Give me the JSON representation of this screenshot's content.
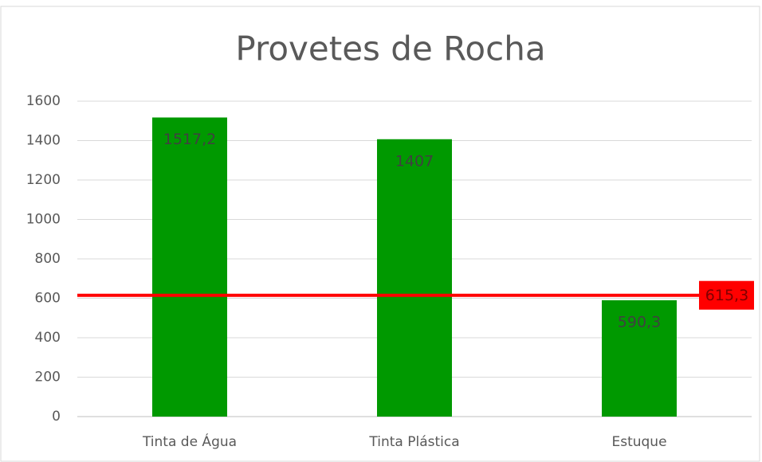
{
  "chart_data": {
    "type": "bar",
    "title": "Provetes de Rocha",
    "categories": [
      "Tinta de Água",
      "Tinta Plástica",
      "Estuque"
    ],
    "values": [
      1517.2,
      1407,
      590.3
    ],
    "value_labels": [
      "1517,2",
      "1407",
      "590,3"
    ],
    "color": "#009900",
    "ylim": [
      0,
      1600
    ],
    "yticks": [
      0,
      200,
      400,
      600,
      800,
      1000,
      1200,
      1400,
      1600
    ],
    "grid": true,
    "reference_line": {
      "value": 615.3,
      "label": "615,3",
      "color": "#ff0000"
    }
  }
}
